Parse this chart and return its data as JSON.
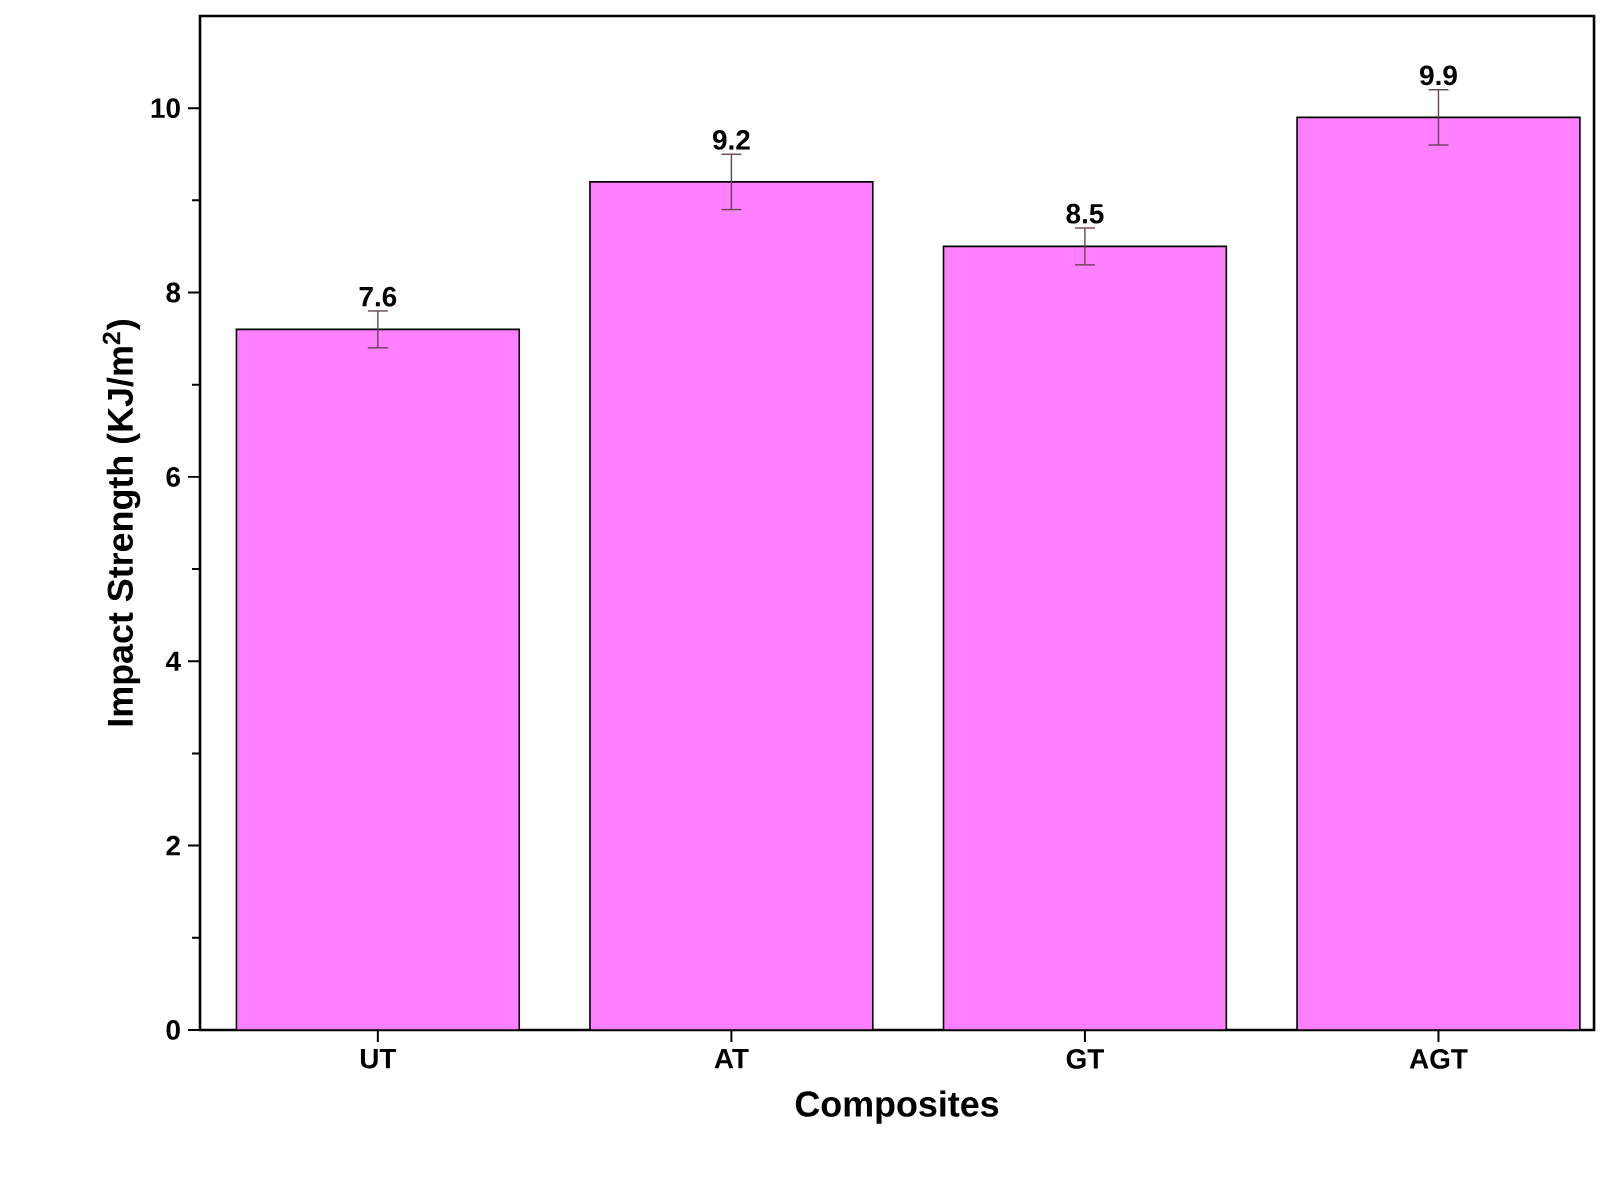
{
  "chart_data": {
    "type": "bar",
    "xlabel": "Composites",
    "ylabel": "Impact Strength (KJ/m$^{2}$)",
    "categories": [
      "UT",
      "AT",
      "GT",
      "AGT"
    ],
    "values": [
      7.6,
      9.2,
      8.5,
      9.9
    ],
    "errors": [
      0.2,
      0.3,
      0.2,
      0.3
    ],
    "color": "#ff80ff",
    "ylim": [
      0,
      11
    ],
    "yticks": [
      0,
      2,
      4,
      6,
      8,
      10
    ],
    "data_labels": true
  }
}
